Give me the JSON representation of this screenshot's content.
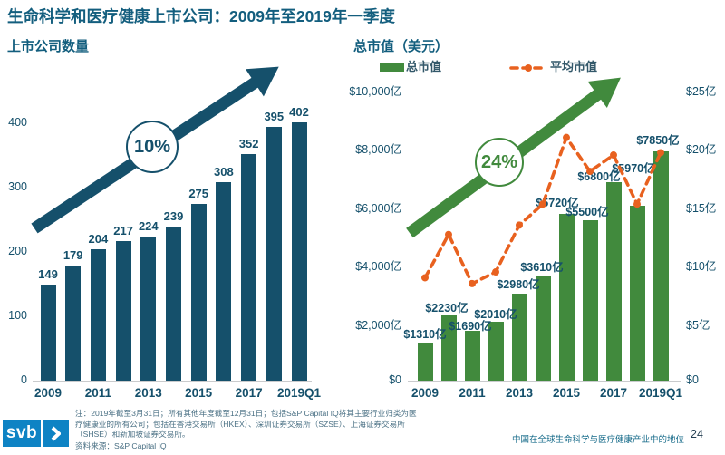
{
  "slide": {
    "title": "生命科学和医疗健康上市公司：2009年至2019年一季度",
    "colors": {
      "title_teal": "#135E7E",
      "dark_teal": "#15506B",
      "green": "#418A3D",
      "orange": "#E8611F",
      "logo_blue": "#0E83C4",
      "note_gray": "#4A7084"
    },
    "footer": {
      "logo_text": "svb",
      "note": "注：2019年截至3月31日；所有其他年度截至12月31日；包括S&P Capital IQ将其主要行业归类为医\n疗健康业的所有公司；包括在香港交易所（HKEX）、深圳证券交易所（SZSE）、上海证券交易所\n（SHSE）和新加坡证券交易所。",
      "source": "资料来源：S&P Capital IQ",
      "tagline": "中国在全球生命科学与医疗健康产业中的地位",
      "page_number": "24"
    }
  },
  "chart_data": [
    {
      "type": "bar",
      "title": "上市公司数量",
      "growth_label": "10%",
      "categories": [
        "2009",
        "2010",
        "2011",
        "2012",
        "2013",
        "2014",
        "2015",
        "2016",
        "2017",
        "2018",
        "2019Q1"
      ],
      "values": [
        149,
        179,
        204,
        217,
        224,
        239,
        275,
        308,
        352,
        395,
        402
      ],
      "value_labels": [
        "149",
        "179",
        "204",
        "217",
        "224",
        "239",
        "275",
        "308",
        "352",
        "395",
        "402"
      ],
      "x_tick_labels": [
        "2009",
        "2011",
        "2013",
        "2015",
        "2017",
        "2019Q1"
      ],
      "y_ticks": [
        "0",
        "100",
        "200",
        "300",
        "400"
      ],
      "ylim": [
        0,
        400
      ],
      "grid": false,
      "legend_position": "none",
      "bar_color": "#15506B"
    },
    {
      "type": "bar-line",
      "title": "总市值（美元）",
      "growth_label": "24%",
      "categories": [
        "2009",
        "2010",
        "2011",
        "2012",
        "2013",
        "2014",
        "2015",
        "2016",
        "2017",
        "2018",
        "2019Q1"
      ],
      "series": [
        {
          "name": "总市值",
          "type": "bar",
          "axis": "left",
          "color": "#418A3D",
          "values": [
            1310,
            2230,
            1690,
            2010,
            2980,
            3610,
            5720,
            5500,
            6800,
            5970,
            7850
          ],
          "value_labels": [
            "$1310亿",
            "$2230亿",
            "$1690亿",
            "$2010亿",
            "$2980亿",
            "$3610亿",
            "$5720亿",
            "$5500亿",
            "$6800亿",
            "$5970亿",
            "$7850亿"
          ]
        },
        {
          "name": "平均市值",
          "type": "line",
          "axis": "right",
          "style": "dashed",
          "color": "#E8611F",
          "values": [
            8.8,
            12.5,
            8.3,
            9.3,
            13.3,
            15.1,
            20.8,
            17.9,
            19.3,
            15.1,
            19.5
          ]
        }
      ],
      "x_tick_labels": [
        "2009",
        "2011",
        "2013",
        "2015",
        "2017",
        "2019Q1"
      ],
      "y_ticks_left": [
        "$0",
        "$2,000亿",
        "$4,000亿",
        "$6,000亿",
        "$8,000亿",
        "$10,000亿"
      ],
      "y_ticks_right": [
        "$0",
        "$5亿",
        "$10亿",
        "$15亿",
        "$20亿",
        "$25亿"
      ],
      "ylim_left": [
        0,
        10000
      ],
      "ylim_right": [
        0,
        25
      ],
      "grid": false,
      "legend_position": "top"
    }
  ]
}
